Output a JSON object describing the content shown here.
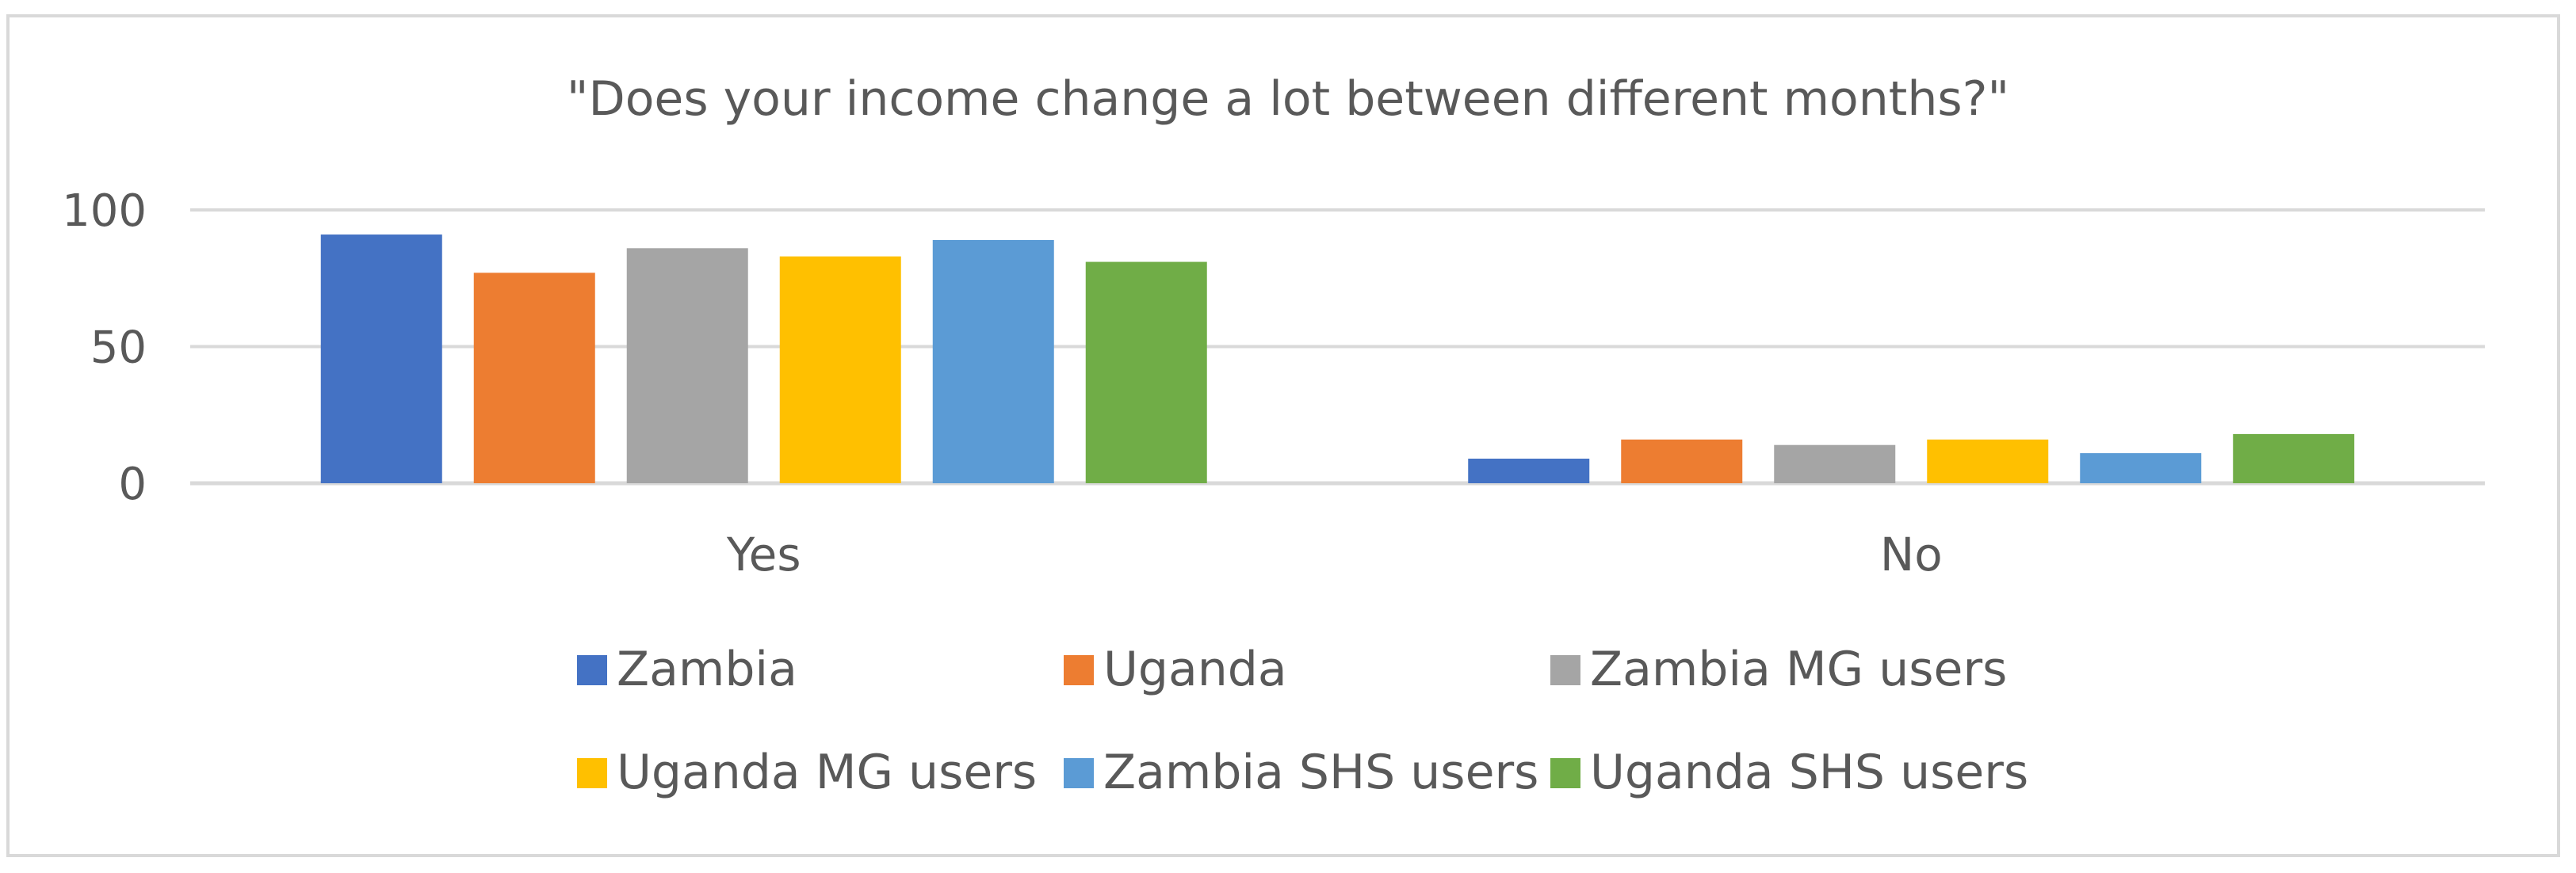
{
  "chart_data": {
    "type": "bar",
    "title": "\"Does your income change a lot between different months?\"",
    "xlabel": "",
    "ylabel": "",
    "categories": [
      "Yes",
      "No"
    ],
    "ylim": [
      0,
      100
    ],
    "yticks": [
      0,
      50,
      100
    ],
    "grid": true,
    "legend_position": "bottom",
    "series": [
      {
        "name": "Zambia",
        "color": "#4472c4",
        "values": [
          91,
          9
        ]
      },
      {
        "name": "Uganda",
        "color": "#ed7d31",
        "values": [
          77,
          16
        ]
      },
      {
        "name": "Zambia MG users",
        "color": "#a5a5a5",
        "values": [
          86,
          14
        ]
      },
      {
        "name": "Uganda MG users",
        "color": "#ffc000",
        "values": [
          83,
          16
        ]
      },
      {
        "name": "Zambia SHS users",
        "color": "#5b9bd5",
        "values": [
          89,
          11
        ]
      },
      {
        "name": "Uganda SHS users",
        "color": "#70ad47",
        "values": [
          81,
          18
        ]
      }
    ]
  }
}
